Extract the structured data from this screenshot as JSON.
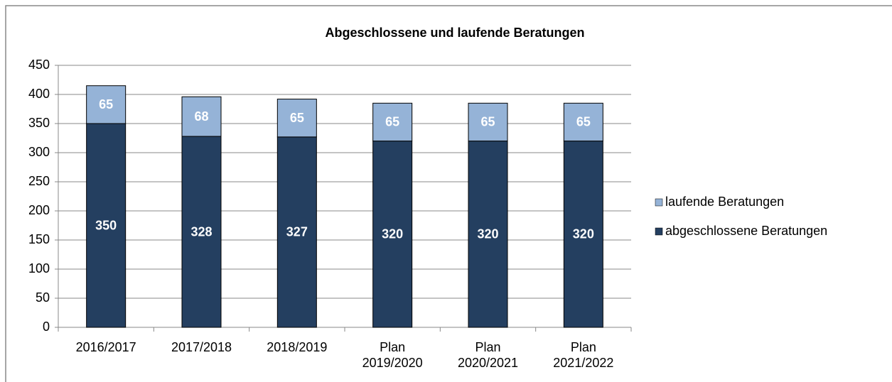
{
  "chart_data": {
    "type": "stacked_bar",
    "title": "Abgeschlossene und laufende Beratungen",
    "categories": [
      "2016/2017",
      "2017/2018",
      "2018/2019",
      "Plan\n2019/2020",
      "Plan\n2020/2021",
      "Plan\n2021/2022"
    ],
    "series": [
      {
        "name": "abgeschlossene Beratungen",
        "color": "#243f60",
        "values": [
          350,
          328,
          327,
          320,
          320,
          320
        ]
      },
      {
        "name": "laufende Beratungen",
        "color": "#95b3d7",
        "values": [
          65,
          68,
          65,
          65,
          65,
          65
        ]
      }
    ],
    "ylim": [
      0,
      450
    ],
    "yticks": [
      0,
      50,
      100,
      150,
      200,
      250,
      300,
      350,
      400,
      450
    ],
    "grid": true,
    "legend": "right"
  }
}
